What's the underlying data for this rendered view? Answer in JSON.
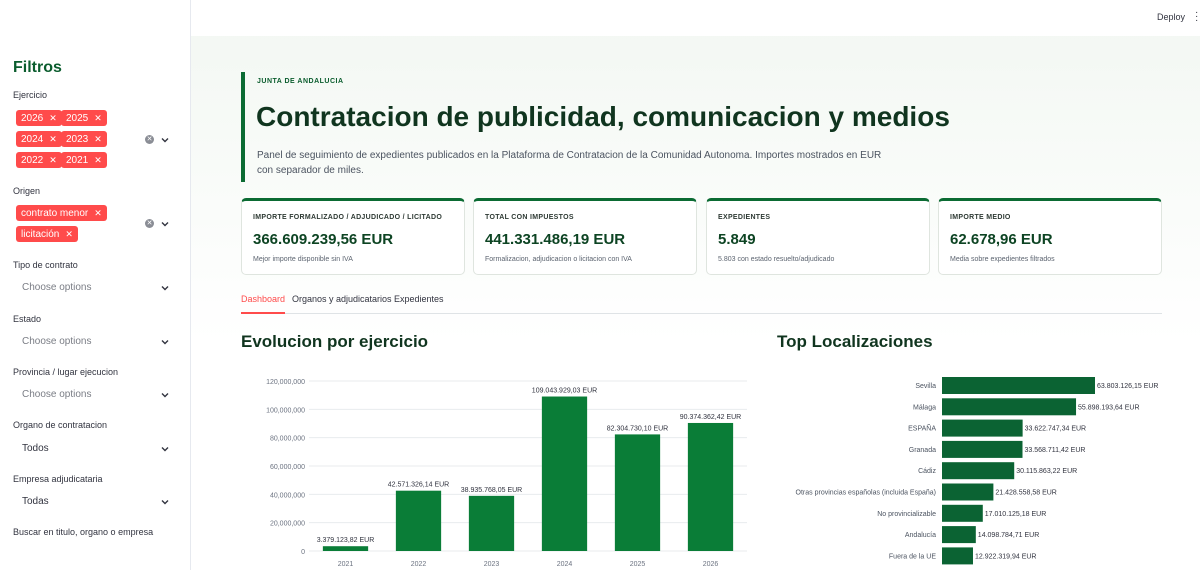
{
  "sidebar": {
    "title": "Filtros",
    "ejercicio": {
      "label": "Ejercicio",
      "tags": [
        "2026",
        "2025",
        "2024",
        "2023",
        "2022",
        "2021"
      ]
    },
    "origen": {
      "label": "Origen",
      "tags": [
        "contrato menor",
        "licitación"
      ]
    },
    "tipo": {
      "label": "Tipo de contrato",
      "placeholder": "Choose options"
    },
    "estado": {
      "label": "Estado",
      "placeholder": "Choose options"
    },
    "provincia": {
      "label": "Provincia / lugar ejecucion",
      "placeholder": "Choose options"
    },
    "organo": {
      "label": "Organo de contratacion",
      "value": "Todos"
    },
    "empresa": {
      "label": "Empresa adjudicataria",
      "value": "Todas"
    },
    "buscar": {
      "label": "Buscar en titulo, organo o empresa"
    }
  },
  "header": {
    "deploy": "Deploy"
  },
  "hero": {
    "eyebrow": "JUNTA DE ANDALUCIA",
    "title": "Contratacion de publicidad, comunicacion y medios",
    "description": "Panel de seguimiento de expedientes publicados en la Plataforma de Contratacion de la Comunidad Autonoma. Importes mostrados en EUR con separador de miles."
  },
  "kpis": [
    {
      "label": "IMPORTE FORMALIZADO / ADJUDICADO / LICITADO",
      "value": "366.609.239,56 EUR",
      "note": "Mejor importe disponible sin IVA"
    },
    {
      "label": "TOTAL CON IMPUESTOS",
      "value": "441.331.486,19 EUR",
      "note": "Formalizacion, adjudicacion o licitacion con IVA"
    },
    {
      "label": "EXPEDIENTES",
      "value": "5.849",
      "note": "5.803 con estado resuelto/adjudicado"
    },
    {
      "label": "IMPORTE MEDIO",
      "value": "62.678,96 EUR",
      "note": "Media sobre expedientes filtrados"
    }
  ],
  "tabs": [
    "Dashboard",
    "Organos y adjudicatarios",
    "Expedientes"
  ],
  "sections": {
    "evolucion": "Evolucion por ejercicio",
    "localizaciones": "Top Localizaciones"
  },
  "colors": {
    "accent": "#ff4b4b",
    "brand": "#0b6b33",
    "bar_year": "#0a7d37",
    "bar_loc": "#0b6333"
  },
  "chart_data": [
    {
      "type": "bar",
      "title": "Evolucion por ejercicio",
      "categories": [
        "2021",
        "2022",
        "2023",
        "2024",
        "2025",
        "2026"
      ],
      "values": [
        3379123.82,
        42571326.14,
        38935768.05,
        109043929.03,
        82304730.1,
        90374362.42
      ],
      "data_labels": [
        "3.379.123,82 EUR",
        "42.571.326,14 EUR",
        "38.935.768,05 EUR",
        "109.043.929,03 EUR",
        "82.304.730,10 EUR",
        "90.374.362,42 EUR"
      ],
      "yticks": [
        "0",
        "20,000,000",
        "40,000,000",
        "60,000,000",
        "80,000,000",
        "100,000,000",
        "120,000,000"
      ],
      "ylim": [
        0,
        120000000
      ],
      "grid": true
    },
    {
      "type": "bar",
      "orientation": "horizontal",
      "title": "Top Localizaciones",
      "categories": [
        "Sevilla",
        "Málaga",
        "ESPAÑA",
        "Granada",
        "Cádiz",
        "Otras provincias españolas (incluida España)",
        "No provincializable",
        "Andalucía",
        "Fuera de la UE"
      ],
      "values": [
        63803126.15,
        55898193.64,
        33622747.34,
        33568711.42,
        30115863.22,
        21428558.58,
        17010125.18,
        14098784.71,
        12922319.94
      ],
      "data_labels": [
        "63.803.126,15 EUR",
        "55.898.193,64 EUR",
        "33.622.747,34 EUR",
        "33.568.711,42 EUR",
        "30.115.863,22 EUR",
        "21.428.558,58 EUR",
        "17.010.125,18 EUR",
        "14.098.784,71 EUR",
        "12.922.319,94 EUR"
      ]
    }
  ]
}
